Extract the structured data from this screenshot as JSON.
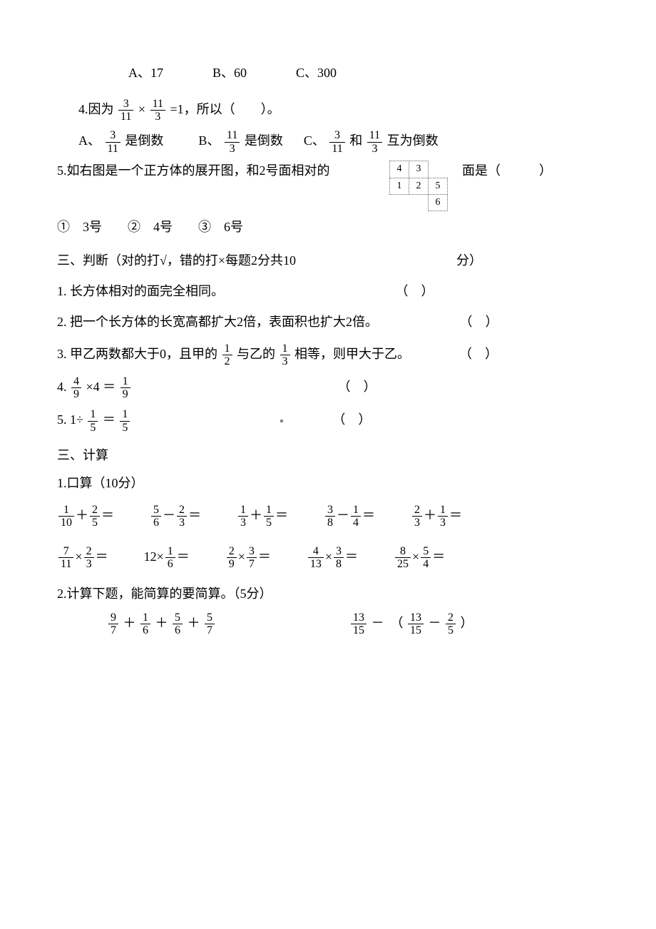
{
  "q3_options": {
    "A": "A、17",
    "B": "B、60",
    "C": "C、300"
  },
  "q4": {
    "stem_prefix": "4.因为",
    "frac1": {
      "num": "3",
      "den": "11"
    },
    "times": "×",
    "frac2": {
      "num": "11",
      "den": "3"
    },
    "eq": "=1，所以（　　）。",
    "optA_pre": "A、",
    "optA_frac": {
      "num": "3",
      "den": "11"
    },
    "optA_post": " 是倒数",
    "optB_pre": "B、",
    "optB_frac": {
      "num": "11",
      "den": "3"
    },
    "optB_post": "是倒数",
    "optC_pre": "C、",
    "optC_frac1": {
      "num": "3",
      "den": "11"
    },
    "optC_mid": " 和",
    "optC_frac2": {
      "num": "11",
      "den": "3"
    },
    "optC_post": "互为倒数"
  },
  "q5": {
    "left1": "5.如右图是一个正方体的展开图，和2号面相对的",
    "right1": "面是（　　　）",
    "left2": "①　3号　　②　4号　　③　6号",
    "net": [
      [
        null,
        "4",
        "3",
        null
      ],
      [
        null,
        "1",
        "2",
        "5"
      ],
      [
        null,
        null,
        null,
        "6"
      ]
    ]
  },
  "sec3a_title": "三、判断（对的打√，错的打×每题2分共10",
  "sec3a_title_tail": "分）",
  "judge": {
    "j1": "1. 长方体相对的面完全相同。",
    "j1_p": "（　）",
    "j2": "2. 把一个长方体的长宽高都扩大2倍，表面积也扩大2倍。",
    "j2_p": "（　）",
    "j3_pre": "3. 甲乙两数都大于0，且甲的",
    "j3_f1": {
      "num": "1",
      "den": "2"
    },
    "j3_mid": " 与乙的",
    "j3_f2": {
      "num": "1",
      "den": "3"
    },
    "j3_post": " 相等，则甲大于乙。",
    "j3_p": "（　）",
    "j4_pre": "4. ",
    "j4_f1": {
      "num": "4",
      "den": "9"
    },
    "j4_mid": " ×4 ＝ ",
    "j4_f2": {
      "num": "1",
      "den": "9"
    },
    "j4_p": "（　）",
    "j5_pre": "5. ",
    "j5_1": "1÷",
    "j5_f1": {
      "num": "1",
      "den": "5"
    },
    "j5_mid": " ＝ ",
    "j5_f2": {
      "num": "1",
      "den": "5"
    },
    "j5_p": "（　）"
  },
  "sec3b_title": "三、计算",
  "calc1_title": "1.口算（10分）",
  "calc_row1": [
    {
      "a": {
        "num": "1",
        "den": "10"
      },
      "op": "＋",
      "b": {
        "num": "2",
        "den": "5"
      },
      "eq": "＝"
    },
    {
      "a": {
        "num": "5",
        "den": "6"
      },
      "op": "－",
      "b": {
        "num": "2",
        "den": "3"
      },
      "eq": "＝"
    },
    {
      "a": {
        "num": "1",
        "den": "3"
      },
      "op": "＋",
      "b": {
        "num": "1",
        "den": "5"
      },
      "eq": "＝"
    },
    {
      "a": {
        "num": "3",
        "den": "8"
      },
      "op": "－",
      "b": {
        "num": "1",
        "den": "4"
      },
      "eq": "＝"
    },
    {
      "a": {
        "num": "2",
        "den": "3"
      },
      "op": "＋",
      "b": {
        "num": "1",
        "den": "3"
      },
      "eq": "＝"
    }
  ],
  "calc_row2": [
    {
      "a": {
        "num": "7",
        "den": "11"
      },
      "op": "×",
      "b": {
        "num": "2",
        "den": "3"
      },
      "eq": "＝"
    },
    {
      "pre": "12×",
      "b": {
        "num": "1",
        "den": "6"
      },
      "eq": "＝"
    },
    {
      "a": {
        "num": "2",
        "den": "9"
      },
      "op": "×",
      "b": {
        "num": "3",
        "den": "7"
      },
      "eq": "＝"
    },
    {
      "a": {
        "num": "4",
        "den": "13"
      },
      "op": "×",
      "b": {
        "num": "3",
        "den": "8"
      },
      "eq": "＝"
    },
    {
      "a": {
        "num": "8",
        "den": "25"
      },
      "op": "×",
      "b": {
        "num": "5",
        "den": "4"
      },
      "eq": "＝"
    }
  ],
  "calc2_title": "2.计算下题，能简算的要简算。（5分）",
  "calc2_e1": {
    "t1": {
      "num": "9",
      "den": "7"
    },
    "p1": "＋",
    "t2": {
      "num": "1",
      "den": "6"
    },
    "p2": "＋",
    "t3": {
      "num": "5",
      "den": "6"
    },
    "p3": "＋",
    "t4": {
      "num": "5",
      "den": "7"
    }
  },
  "calc2_e2": {
    "t1": {
      "num": "13",
      "den": "15"
    },
    "p1": "－　（",
    "t2": {
      "num": "13",
      "den": "15"
    },
    "p2": "－",
    "t3": {
      "num": "2",
      "den": "5"
    },
    "p3": "）"
  }
}
